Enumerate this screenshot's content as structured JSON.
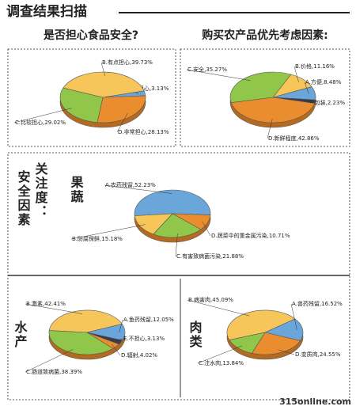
{
  "header": {
    "title": "调查结果扫描",
    "section": [
      "关注度：",
      "安全因素"
    ],
    "watermark": "315online.com"
  },
  "chart_data": [
    {
      "type": "pie",
      "title": "是否担心食品安全?",
      "values": [
        3.13,
        39.73,
        29.02,
        28.13
      ],
      "value_labels": [
        "A.不担心,3.13%",
        "B.有点担心,39.73%",
        "C.比较担心,29.02%",
        "D.非常担心,28.13%"
      ],
      "colors": [
        "#6aa6da",
        "#f6c65b",
        "#90c74a",
        "#e98d2e"
      ]
    },
    {
      "type": "pie",
      "title": "购买农产品优先考虑因素:",
      "values": [
        8.48,
        11.16,
        35.27,
        42.86,
        2.23
      ],
      "value_labels": [
        "A.方便,8.48%",
        "B.价格,11.16%",
        "C.安全,35.27%",
        "D.新鲜程度,42.86%",
        "E.包装,2.23%"
      ],
      "colors": [
        "#6aa6da",
        "#f6c65b",
        "#90c74a",
        "#e98d2e",
        "#3b3b4f"
      ]
    },
    {
      "type": "pie",
      "title": "果蔬",
      "values": [
        52.23,
        15.18,
        21.88,
        10.71
      ],
      "value_labels": [
        "A.农药残留,52.23%",
        "B.防腐保鲜,15.18%",
        "C.有害致病菌污染,21.88%",
        "D.蔬菜中的重金属污染,10.71%"
      ],
      "colors": [
        "#6aa6da",
        "#f6c65b",
        "#90c74a",
        "#e98d2e"
      ]
    },
    {
      "type": "pie",
      "title": "水产",
      "values": [
        12.05,
        42.41,
        38.39,
        4.02,
        3.13
      ],
      "value_labels": [
        "A.鱼药残留,12.05%",
        "B.激素,42.41%",
        "C.肠道致病菌,38.39%",
        "D.辐射,4.02%",
        "E.不担心,3.13%"
      ],
      "colors": [
        "#6aa6da",
        "#f6c65b",
        "#90c74a",
        "#e98d2e",
        "#3b3b4f"
      ]
    },
    {
      "type": "pie",
      "title": "肉类",
      "values": [
        16.52,
        45.09,
        13.84,
        24.55
      ],
      "value_labels": [
        "A.兽药残留,16.52%",
        "B.病害肉,45.09%",
        "C.注水肉,13.84%",
        "D.变质肉,24.55%"
      ],
      "colors": [
        "#6aa6da",
        "#f6c65b",
        "#90c74a",
        "#e98d2e"
      ]
    }
  ]
}
